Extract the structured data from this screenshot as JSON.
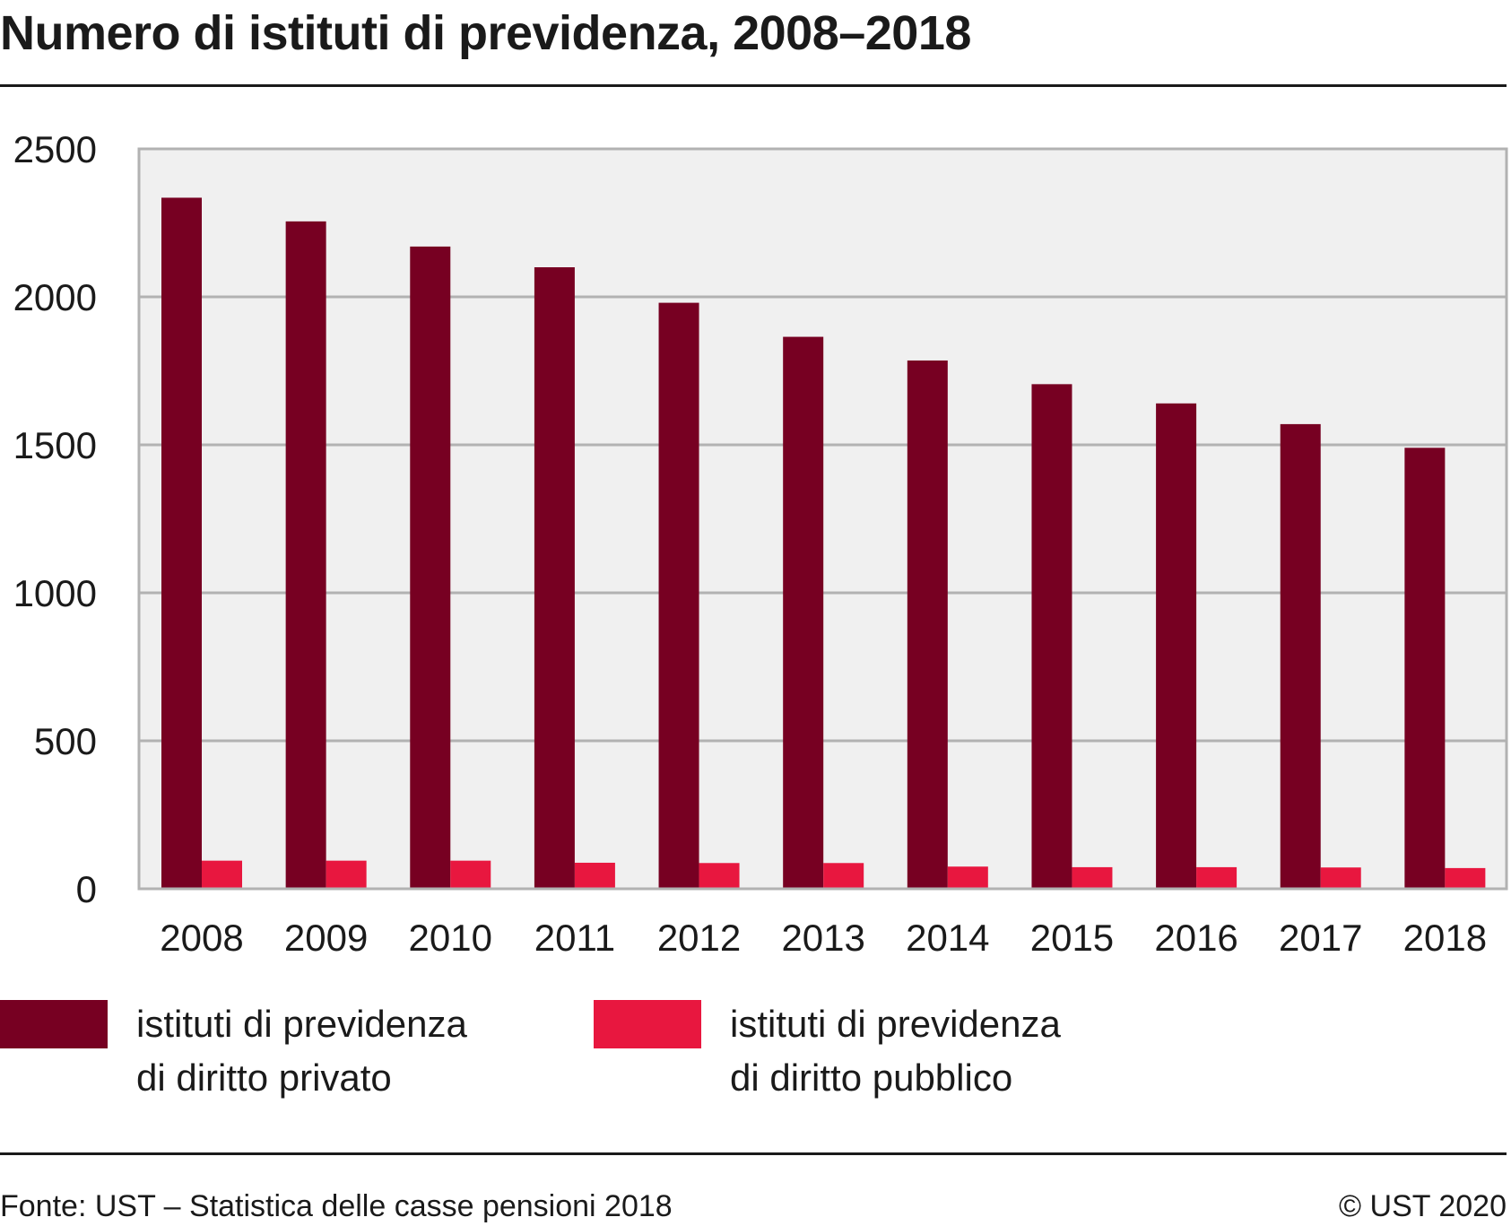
{
  "chart_data": {
    "type": "bar",
    "title": "Numero di istituti di previdenza, 2008–2018",
    "categories": [
      "2008",
      "2009",
      "2010",
      "2011",
      "2012",
      "2013",
      "2014",
      "2015",
      "2016",
      "2017",
      "2018"
    ],
    "series": [
      {
        "name_lines": [
          "istituti di previdenza",
          "di diritto privato"
        ],
        "color": "#770022",
        "values": [
          2335,
          2255,
          2170,
          2100,
          1980,
          1865,
          1785,
          1705,
          1640,
          1570,
          1490
        ]
      },
      {
        "name_lines": [
          "istituti di previdenza",
          "di diritto pubblico"
        ],
        "color": "#e8173f",
        "values": [
          95,
          95,
          95,
          88,
          87,
          87,
          75,
          73,
          73,
          72,
          70
        ]
      }
    ],
    "yticks": [
      "0",
      "500",
      "1000",
      "1500",
      "2000",
      "2500"
    ],
    "ylim": [
      0,
      2500
    ],
    "grid": true,
    "legend_position": "bottom"
  },
  "footer": {
    "source": "Fonte: UST – Statistica delle casse pensioni 2018",
    "copyright": "© UST 2020"
  },
  "colors": {
    "plot_background": "#f0f0f0",
    "gridline": "#b2b2b2"
  }
}
